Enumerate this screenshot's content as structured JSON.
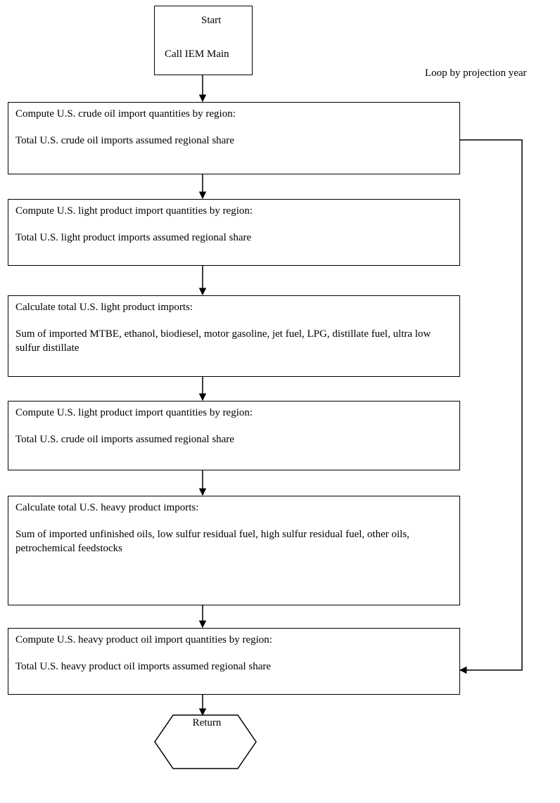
{
  "start": {
    "title": "Start",
    "subtitle": "Call IEM Main"
  },
  "loop_label": "Loop by projection year",
  "steps": [
    {
      "heading": "Compute U.S. crude oil import quantities by region:",
      "body": "Total U.S. crude oil imports assumed regional share"
    },
    {
      "heading": "Compute U.S. light product import quantities by region:",
      "body": "Total U.S. light product imports assumed regional share"
    },
    {
      "heading": "Calculate total U.S. light product imports:",
      "body": "Sum of imported MTBE, ethanol, biodiesel, motor gasoline, jet fuel, LPG, distillate fuel, ultra low sulfur distillate"
    },
    {
      "heading": "Compute U.S. light product import quantities by region:",
      "body": "Total U.S. crude oil imports assumed regional share"
    },
    {
      "heading": "Calculate total U.S. heavy product imports:",
      "body": "Sum of imported unfinished oils, low sulfur residual fuel, high sulfur residual fuel, other oils, petrochemical feedstocks"
    },
    {
      "heading": "Compute U.S. heavy product oil import quantities by region:",
      "body": "Total U.S. heavy product oil imports assumed regional share"
    }
  ],
  "end": {
    "label": "Return"
  }
}
